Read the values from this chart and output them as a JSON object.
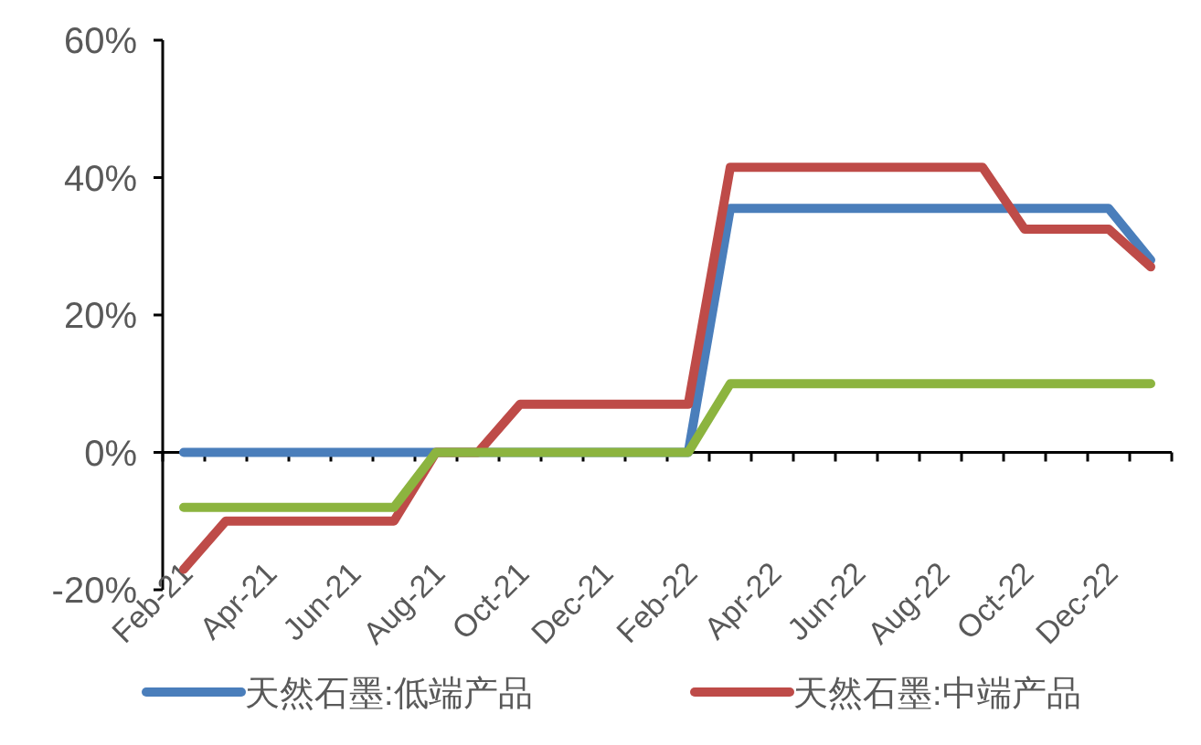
{
  "chart_data": {
    "type": "line",
    "categories": [
      "Feb-21",
      null,
      "Apr-21",
      null,
      "Jun-21",
      null,
      "Aug-21",
      null,
      "Oct-21",
      null,
      "Dec-21",
      null,
      "Feb-22",
      null,
      "Apr-22",
      null,
      "Jun-22",
      null,
      "Aug-22",
      null,
      "Oct-22",
      null,
      "Dec-22",
      null
    ],
    "series": [
      {
        "name": "天然石墨:低端产品",
        "color": "#4a7ebb",
        "values": [
          0,
          0,
          0,
          0,
          0,
          0,
          0,
          0,
          0,
          0,
          0,
          0,
          0,
          35.5,
          35.5,
          35.5,
          35.5,
          35.5,
          35.5,
          35.5,
          35.5,
          35.5,
          35.5,
          28
        ]
      },
      {
        "name": "天然石墨:中端产品",
        "color": "#be4b48",
        "values": [
          -17,
          -10,
          -10,
          -10,
          -10,
          -10,
          0,
          0,
          7,
          7,
          7,
          7,
          7,
          41.5,
          41.5,
          41.5,
          41.5,
          41.5,
          41.5,
          41.5,
          32.5,
          32.5,
          32.5,
          27
        ]
      },
      {
        "color": "#8cb43f",
        "values": [
          -8,
          -8,
          -8,
          -8,
          -8,
          -8,
          0,
          0,
          0,
          0,
          0,
          0,
          0,
          10,
          10,
          10,
          10,
          10,
          10,
          10,
          10,
          10,
          10,
          10
        ]
      }
    ],
    "ylim": [
      -20,
      60
    ],
    "yticks": [
      {
        "value": -20,
        "label": "-20%"
      },
      {
        "value": 0,
        "label": "0%"
      },
      {
        "value": 20,
        "label": "20%"
      },
      {
        "value": 40,
        "label": "40%"
      },
      {
        "value": 60,
        "label": "60%"
      }
    ],
    "legend": "bottom",
    "marker": "none",
    "line_style": "solid"
  }
}
